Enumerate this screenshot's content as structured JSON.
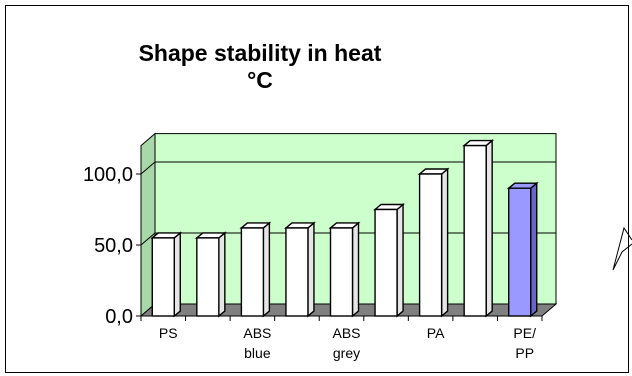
{
  "chart_data": {
    "type": "bar",
    "title": "Shape stability in heat",
    "subtitle": "°C",
    "categories": [
      [
        "PS"
      ],
      [
        ""
      ],
      [
        "ABS",
        "blue"
      ],
      [
        ""
      ],
      [
        "ABS",
        "grey"
      ],
      [
        ""
      ],
      [
        "PA"
      ],
      [
        ""
      ],
      [
        "PE/",
        "PP"
      ]
    ],
    "values": [
      55,
      55,
      62,
      62,
      62,
      75,
      100,
      120,
      90
    ],
    "ylim": [
      0,
      120
    ],
    "yticks": [
      "0,0",
      "50,0",
      "100,0"
    ],
    "ytick_values": [
      0,
      50,
      100
    ],
    "grid": true,
    "colors": {
      "plot_back": "#ccffcc",
      "floor": "#808080",
      "bar_default": "#ffffff",
      "bar_highlight": "#9999ff"
    },
    "highlight_index": 8
  }
}
